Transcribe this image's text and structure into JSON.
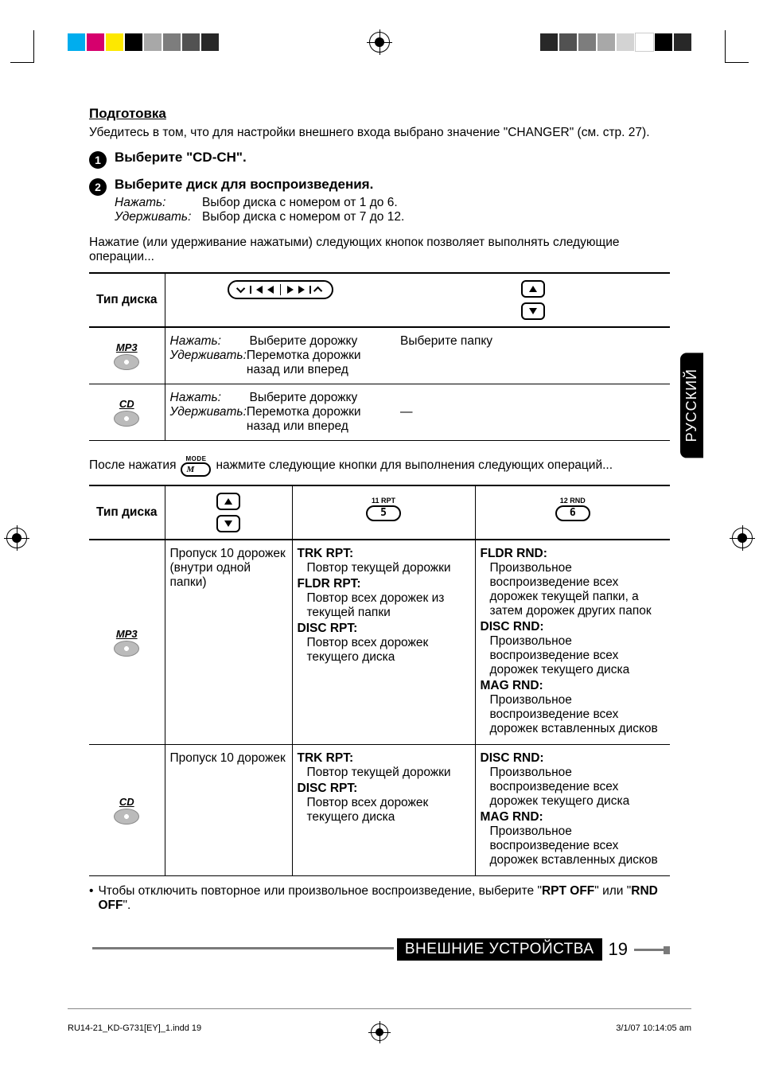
{
  "registration_bars": {
    "left_colors": [
      "#00adee",
      "#d6006d",
      "#fde800",
      "#000000",
      "#a8a8a8",
      "#7d7d7d",
      "#525252",
      "#282828"
    ],
    "right_colors": [
      "#282828",
      "#525252",
      "#7d7d7d",
      "#a8a8a8",
      "#d3d3d3",
      "#ffffff",
      "#000000",
      "#282828"
    ]
  },
  "side_tab": "РУССКИЙ",
  "prep": {
    "heading": "Подготовка",
    "text": "Убедитесь в том, что для настройки внешнего входа выбрано значение \"CHANGER\" (см. стр. 27)."
  },
  "steps": [
    {
      "num": "1",
      "title": "Выберите \"CD-CH\"."
    },
    {
      "num": "2",
      "title": "Выберите диск для воспроизведения.",
      "rows": [
        {
          "lbl": "Нажать:",
          "txt": "Выбор диска с номером от 1 до 6."
        },
        {
          "lbl": "Удерживать:",
          "txt": "Выбор диска с номером от 7 до 12."
        }
      ]
    }
  ],
  "para1": "Нажатие (или удерживание нажатыми) следующих кнопок позволяет выполнять следующие операции...",
  "table1": {
    "head": [
      "Тип диска",
      "seek",
      "folder"
    ],
    "rows": [
      {
        "disc": "MP3",
        "col2": [
          {
            "lbl": "Нажать:",
            "txt": "Выберите дорожку"
          },
          {
            "lbl": "Удерживать:",
            "txt": "Перемотка дорожки назад или вперед"
          }
        ],
        "col3": "Выберите папку"
      },
      {
        "disc": "CD",
        "col2": [
          {
            "lbl": "Нажать:",
            "txt": "Выберите дорожку"
          },
          {
            "lbl": "Удерживать:",
            "txt": "Перемотка дорожки назад или вперед"
          }
        ],
        "col3": "—"
      }
    ]
  },
  "mode_line": {
    "pre": "После нажатия",
    "label": "MODE",
    "btn": "M",
    "post": "нажмите следующие кнопки для выполнения следующих операций..."
  },
  "table2": {
    "head": [
      "Тип диска",
      "folder",
      "rpt",
      "rnd"
    ],
    "btn_rpt": {
      "top": "11  RPT",
      "num": "5"
    },
    "btn_rnd": {
      "top": "12  RND",
      "num": "6"
    },
    "rows": [
      {
        "disc": "MP3",
        "c2": "Пропуск 10 дорожек (внутри одной папки)",
        "c3": [
          {
            "b": "TRK RPT:",
            "d": "Повтор текущей дорожки"
          },
          {
            "b": "FLDR RPT:",
            "d": "Повтор всех дорожек из текущей папки"
          },
          {
            "b": "DISC RPT:",
            "d": "Повтор всех дорожек текущего диска"
          }
        ],
        "c4": [
          {
            "b": "FLDR RND:",
            "d": "Произвольное воспроизведение всех дорожек текущей папки, а затем дорожек других папок"
          },
          {
            "b": "DISC RND:",
            "d": "Произвольное воспроизведение всех дорожек текущего диска"
          },
          {
            "b": "MAG RND:",
            "d": "Произвольное воспроизведение всех дорожек вставленных дисков"
          }
        ]
      },
      {
        "disc": "CD",
        "c2": "Пропуск 10 дорожек",
        "c3": [
          {
            "b": "TRK RPT:",
            "d": "Повтор текущей дорожки"
          },
          {
            "b": "DISC RPT:",
            "d": "Повтор всех дорожек текущего диска"
          }
        ],
        "c4": [
          {
            "b": "DISC RND:",
            "d": "Произвольное воспроизведение всех дорожек текущего диска"
          },
          {
            "b": "MAG RND:",
            "d": "Произвольное воспроизведение всех дорожек вставленных дисков"
          }
        ]
      }
    ]
  },
  "footnote": "Чтобы отключить повторное или произвольное воспроизведение, выберите \"RPT OFF\" или \"RND OFF\".",
  "footnote_bold1": "RPT OFF",
  "footnote_bold2": "RND OFF",
  "footer": {
    "label": "ВНЕШНИЕ УСТРОЙСТВА",
    "page": "19"
  },
  "imprint": {
    "left": "RU14-21_KD-G731[EY]_1.indd   19",
    "right": "3/1/07   10:14:05 am"
  }
}
